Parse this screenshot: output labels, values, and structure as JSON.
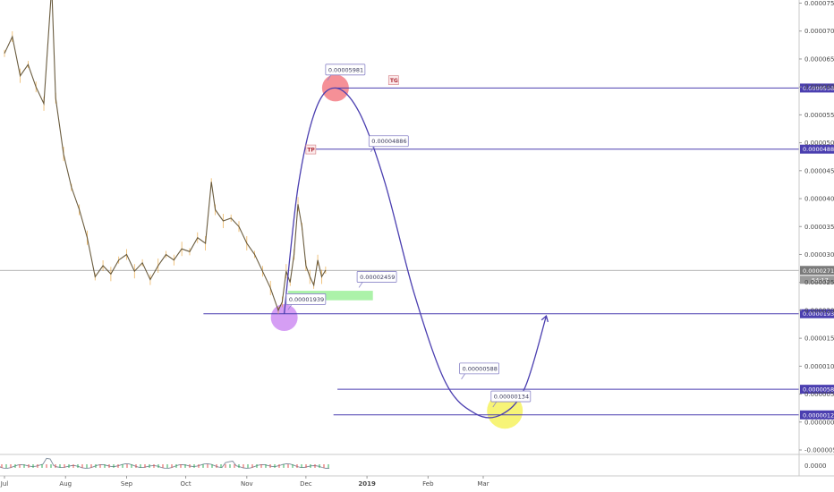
{
  "chart_data": {
    "type": "line",
    "y_axis_labels": [
      "0.00007500",
      "0.00007000",
      "0.00006500",
      "0.00006000",
      "0.00005500",
      "0.00005000",
      "0.00004500",
      "0.00004000",
      "0.00003500",
      "0.00003000",
      "0.00002500",
      "0.00002000",
      "0.00001500",
      "0.00001000",
      "0.00000500",
      "0.00000000",
      "-0.00000500"
    ],
    "y_axis_values": [
      7.5e-05,
      7e-05,
      6.5e-05,
      6e-05,
      5.5e-05,
      5e-05,
      4.5e-05,
      4e-05,
      3.5e-05,
      3e-05,
      2.5e-05,
      2e-05,
      1.5e-05,
      1e-05,
      5e-06,
      0,
      -5e-06
    ],
    "x_axis_labels": [
      "Jul",
      "Aug",
      "Sep",
      "Oct",
      "Nov",
      "Dec",
      "2019",
      "Feb",
      "Mar"
    ],
    "price_series": [
      {
        "date": "2018-07-01",
        "close": 6.6e-05
      },
      {
        "date": "2018-07-05",
        "close": 6.9e-05
      },
      {
        "date": "2018-07-09",
        "close": 6.2e-05
      },
      {
        "date": "2018-07-13",
        "close": 6.4e-05
      },
      {
        "date": "2018-07-17",
        "close": 6e-05
      },
      {
        "date": "2018-07-21",
        "close": 5.7e-05
      },
      {
        "date": "2018-07-25",
        "close": 7.8e-05
      },
      {
        "date": "2018-07-27",
        "close": 5.8e-05
      },
      {
        "date": "2018-07-31",
        "close": 4.8e-05
      },
      {
        "date": "2018-08-04",
        "close": 4.2e-05
      },
      {
        "date": "2018-08-08",
        "close": 3.8e-05
      },
      {
        "date": "2018-08-12",
        "close": 3.3e-05
      },
      {
        "date": "2018-08-16",
        "close": 2.6e-05
      },
      {
        "date": "2018-08-20",
        "close": 2.8e-05
      },
      {
        "date": "2018-08-24",
        "close": 2.65e-05
      },
      {
        "date": "2018-08-28",
        "close": 2.9e-05
      },
      {
        "date": "2018-09-01",
        "close": 3e-05
      },
      {
        "date": "2018-09-05",
        "close": 2.7e-05
      },
      {
        "date": "2018-09-09",
        "close": 2.85e-05
      },
      {
        "date": "2018-09-13",
        "close": 2.55e-05
      },
      {
        "date": "2018-09-17",
        "close": 2.8e-05
      },
      {
        "date": "2018-09-21",
        "close": 3e-05
      },
      {
        "date": "2018-09-25",
        "close": 2.9e-05
      },
      {
        "date": "2018-09-29",
        "close": 3.1e-05
      },
      {
        "date": "2018-10-03",
        "close": 3.05e-05
      },
      {
        "date": "2018-10-07",
        "close": 3.3e-05
      },
      {
        "date": "2018-10-11",
        "close": 3.2e-05
      },
      {
        "date": "2018-10-14",
        "close": 4.3e-05
      },
      {
        "date": "2018-10-16",
        "close": 3.8e-05
      },
      {
        "date": "2018-10-20",
        "close": 3.6e-05
      },
      {
        "date": "2018-10-24",
        "close": 3.65e-05
      },
      {
        "date": "2018-10-28",
        "close": 3.5e-05
      },
      {
        "date": "2018-11-01",
        "close": 3.2e-05
      },
      {
        "date": "2018-11-05",
        "close": 3e-05
      },
      {
        "date": "2018-11-09",
        "close": 2.7e-05
      },
      {
        "date": "2018-11-13",
        "close": 2.4e-05
      },
      {
        "date": "2018-11-17",
        "close": 2e-05
      },
      {
        "date": "2018-11-19",
        "close": 2.15e-05
      },
      {
        "date": "2018-11-21",
        "close": 2.7e-05
      },
      {
        "date": "2018-11-23",
        "close": 2.5e-05
      },
      {
        "date": "2018-11-25",
        "close": 3e-05
      },
      {
        "date": "2018-11-27",
        "close": 3.9e-05
      },
      {
        "date": "2018-11-29",
        "close": 3.5e-05
      },
      {
        "date": "2018-12-01",
        "close": 2.8e-05
      },
      {
        "date": "2018-12-03",
        "close": 2.6e-05
      },
      {
        "date": "2018-12-05",
        "close": 2.45e-05
      },
      {
        "date": "2018-12-07",
        "close": 2.9e-05
      },
      {
        "date": "2018-12-09",
        "close": 2.6e-05
      },
      {
        "date": "2018-12-11",
        "close": 2.72e-05
      }
    ],
    "projection_path": [
      {
        "date": "2018-11-20",
        "price": 1.939e-05
      },
      {
        "date": "2018-11-27",
        "price": 4.2e-05
      },
      {
        "date": "2018-12-06",
        "price": 5.6e-05
      },
      {
        "date": "2018-12-16",
        "price": 5.98e-05
      },
      {
        "date": "2018-12-28",
        "price": 5.55e-05
      },
      {
        "date": "2019-01-10",
        "price": 4.3e-05
      },
      {
        "date": "2019-01-25",
        "price": 2.3e-05
      },
      {
        "date": "2019-02-10",
        "price": 7e-06
      },
      {
        "date": "2019-02-25",
        "price": 1.5e-06
      },
      {
        "date": "2019-03-10",
        "price": 1.3e-06
      },
      {
        "date": "2019-03-22",
        "price": 6e-06
      },
      {
        "date": "2019-04-02",
        "price": 1.9e-05
      }
    ],
    "horizontal_levels": [
      {
        "price": 5.98e-05,
        "label": "0.00005980",
        "start": "2018-12-16"
      },
      {
        "price": 4.886e-05,
        "label": "0.00004886",
        "start": "2018-12-06"
      },
      {
        "price": 1.939e-05,
        "label": "0.00001939",
        "start": "2018-10-10"
      },
      {
        "price": 5.87e-06,
        "label": "0.00000587",
        "start": "2018-12-17"
      },
      {
        "price": 1.28e-06,
        "label": "0.00000128",
        "start": "2018-12-15"
      }
    ],
    "current_price_label": "0.00002715",
    "countdown_label": "54:17",
    "callouts": [
      {
        "text": "0.00005981",
        "date": "2018-12-11",
        "price": 6.31e-05
      },
      {
        "text": "0.00004886",
        "date": "2019-01-02",
        "price": 5.03e-05
      },
      {
        "text": "0.00002459",
        "date": "2018-12-27",
        "price": 2.6e-05
      },
      {
        "text": "0.00001939",
        "date": "2018-11-21",
        "price": 2.2e-05
      },
      {
        "text": "0.00000588",
        "date": "2019-02-17",
        "price": 9.6e-06
      },
      {
        "text": "0.00000134",
        "date": "2019-03-05",
        "price": 4.6e-06
      }
    ],
    "circles": [
      {
        "date": "2018-12-16",
        "price": 5.98e-05,
        "color": "#f26b74"
      },
      {
        "date": "2018-11-20",
        "price": 1.87e-05,
        "color": "#c77df0"
      },
      {
        "date": "2019-03-12",
        "price": 2e-06,
        "color": "#f4f04a"
      }
    ],
    "marks": [
      {
        "text": "TG",
        "date": "2019-01-12",
        "price": 6.12e-05
      },
      {
        "text": "TP",
        "date": "2018-12-01",
        "price": 4.88e-05
      }
    ],
    "support_zone": {
      "start": "2018-11-22",
      "end": "2019-01-04",
      "top": 2.35e-05,
      "bottom": 2.18e-05
    },
    "indicator_axis_label": "0.0000",
    "colors": {
      "projection": "#4b3fb0",
      "level": "#4b3fb0",
      "price_line": "#5a4a2a",
      "price_wick": "#e8a33a",
      "current": "#9a9a9a",
      "zone": "#9ef09a"
    }
  }
}
